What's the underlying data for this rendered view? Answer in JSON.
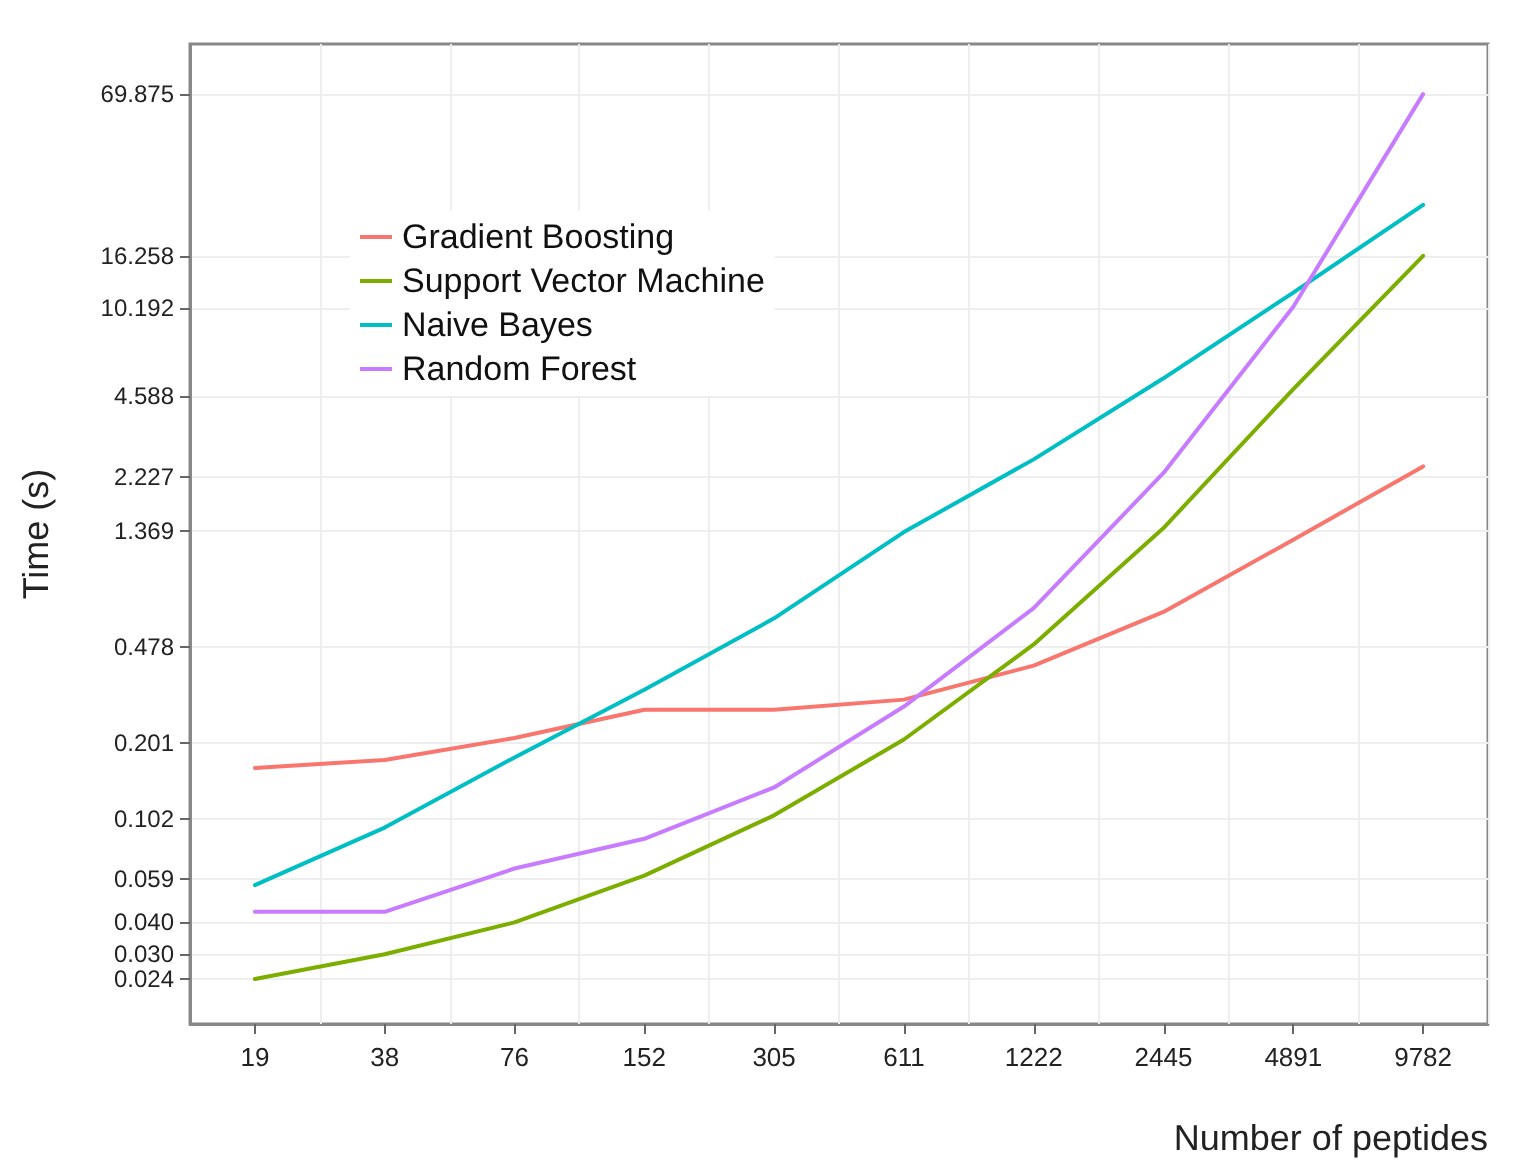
{
  "chart_data": {
    "type": "line",
    "xlabel": "Number of peptides",
    "ylabel": "Time (s)",
    "categories": [
      "19",
      "38",
      "76",
      "152",
      "305",
      "611",
      "1222",
      "2445",
      "4891",
      "9782"
    ],
    "series": [
      {
        "name": "Gradient Boosting",
        "color": "#f8766d",
        "values": [
          0.161,
          0.173,
          0.211,
          0.272,
          0.272,
          0.298,
          0.405,
          0.657,
          1.26,
          2.44
        ]
      },
      {
        "name": "Support Vector Machine",
        "color": "#7cae00",
        "values": [
          0.024,
          0.03,
          0.04,
          0.061,
          0.105,
          0.208,
          0.49,
          1.4,
          4.9,
          16.3
        ]
      },
      {
        "name": "Naive Bayes",
        "color": "#00bfc4",
        "values": [
          0.056,
          0.094,
          0.177,
          0.326,
          0.62,
          1.35,
          2.6,
          5.4,
          11.7,
          25.8
        ]
      },
      {
        "name": "Random Forest",
        "color": "#c77cff",
        "values": [
          0.044,
          0.044,
          0.065,
          0.085,
          0.135,
          0.28,
          0.68,
          2.3,
          10.3,
          70
        ]
      }
    ],
    "log": "y",
    "ylim": [
      0.016,
      110
    ],
    "yticks": [
      0.024,
      {
        "value": 0.03,
        "label": "0.030"
      },
      {
        "value": 0.04,
        "label": "0.040"
      },
      0.059,
      0.102,
      0.201,
      0.478,
      1.369,
      2.227,
      4.588,
      10.192,
      16.258,
      69.875
    ],
    "grid": true,
    "legend": "top left",
    "marker": "none",
    "line_style": "solid"
  }
}
